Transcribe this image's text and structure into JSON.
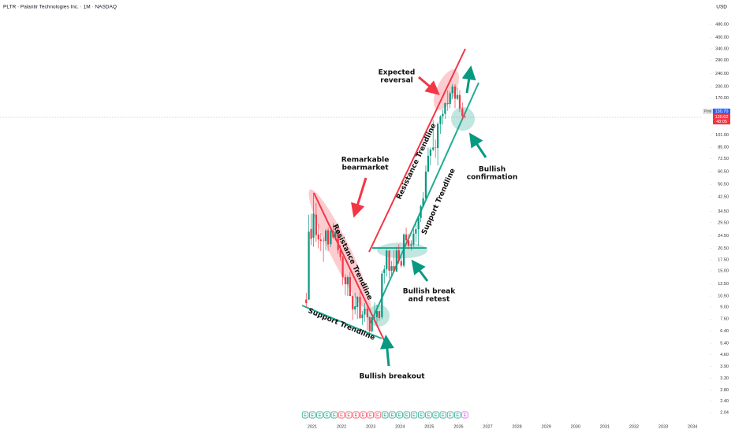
{
  "chart_data": {
    "type": "candlestick",
    "title": "PLTR · Palantir Technologies Inc. · 1M · NASDAQ",
    "currency": "USD",
    "log_scale": true,
    "up_color": "#089981",
    "down_color": "#f23645",
    "xlim": [
      2010.32,
      2034.59
    ],
    "xticks": [
      2021,
      2022,
      2023,
      2024,
      2025,
      2026,
      2027,
      2028,
      2029,
      2030,
      2031,
      2032,
      2033,
      2034
    ],
    "ylim": [
      2.04,
      480
    ],
    "yticks": [
      {
        "value": 480,
        "label": "480.00"
      },
      {
        "value": 400,
        "label": "400.00"
      },
      {
        "value": 340,
        "label": "340.00"
      },
      {
        "value": 290,
        "label": "290.00"
      },
      {
        "value": 240,
        "label": "240.00"
      },
      {
        "value": 200,
        "label": "200.00"
      },
      {
        "value": 170,
        "label": "170.00"
      },
      {
        "value": 101,
        "label": "101.00"
      },
      {
        "value": 85,
        "label": "85.00"
      },
      {
        "value": 72.5,
        "label": "72.50"
      },
      {
        "value": 60.5,
        "label": "60.50"
      },
      {
        "value": 50.5,
        "label": "50.50"
      },
      {
        "value": 42.5,
        "label": "42.50"
      },
      {
        "value": 34.5,
        "label": "34.50"
      },
      {
        "value": 29.5,
        "label": "29.50"
      },
      {
        "value": 24.5,
        "label": "24.50"
      },
      {
        "value": 20.5,
        "label": "20.50"
      },
      {
        "value": 17.5,
        "label": "17.50"
      },
      {
        "value": 15,
        "label": "15.00"
      },
      {
        "value": 12.5,
        "label": "12.50"
      },
      {
        "value": 10.5,
        "label": "10.50"
      },
      {
        "value": 9,
        "label": "9.00"
      },
      {
        "value": 7.6,
        "label": "7.60"
      },
      {
        "value": 6.4,
        "label": "6.40"
      },
      {
        "value": 5.4,
        "label": "5.40"
      },
      {
        "value": 4.6,
        "label": "4.60"
      },
      {
        "value": 3.9,
        "label": "3.90"
      },
      {
        "value": 3.3,
        "label": "3.30"
      },
      {
        "value": 2.8,
        "label": "2.80"
      },
      {
        "value": 2.4,
        "label": "2.40"
      },
      {
        "value": 2.04,
        "label": "2.04"
      }
    ],
    "x": [
      2020.79,
      2020.88,
      2020.96,
      2021.04,
      2021.13,
      2021.21,
      2021.29,
      2021.38,
      2021.46,
      2021.54,
      2021.63,
      2021.71,
      2021.79,
      2021.88,
      2021.96,
      2022.04,
      2022.13,
      2022.21,
      2022.29,
      2022.38,
      2022.46,
      2022.54,
      2022.63,
      2022.71,
      2022.79,
      2022.88,
      2022.96,
      2023.04,
      2023.13,
      2023.21,
      2023.29,
      2023.38,
      2023.46,
      2023.54,
      2023.63,
      2023.71,
      2023.79,
      2023.88,
      2023.96,
      2024.04,
      2024.13,
      2024.21,
      2024.29,
      2024.38,
      2024.46,
      2024.54,
      2024.63,
      2024.71,
      2024.79,
      2024.88,
      2024.96,
      2025.04,
      2025.13,
      2025.21,
      2025.29,
      2025.38,
      2025.46,
      2025.54,
      2025.63,
      2025.71,
      2025.79,
      2025.88,
      2025.96,
      2026.04,
      2026.13,
      2026.21
    ],
    "open": [
      10,
      10,
      27,
      23.9,
      33,
      25,
      23.3,
      22.9,
      22.8,
      26.5,
      21.8,
      26.3,
      24,
      26,
      20,
      18.2,
      13.7,
      12.4,
      13.7,
      10.5,
      8.7,
      9,
      10.4,
      7.7,
      8.1,
      8.8,
      7.8,
      6.4,
      7.8,
      7.8,
      8.5,
      7.8,
      14.5,
      15.3,
      19.9,
      15,
      16,
      14.8,
      20,
      17.2,
      16.1,
      25,
      23,
      21.3,
      21.7,
      25.3,
      26.9,
      31.5,
      37.2,
      41.5,
      60.5,
      75.6,
      82.5,
      84.8,
      84.4,
      118.4,
      131.8,
      136.3,
      158.4,
      156.7,
      182.4,
      200.5,
      168.5,
      177.8,
      147,
      132
    ],
    "high": [
      11,
      33,
      33.5,
      45,
      39,
      29,
      25.5,
      24,
      27,
      27.5,
      27,
      29.3,
      27,
      29,
      21.5,
      18.5,
      14.3,
      14,
      14.8,
      10.7,
      11,
      10.5,
      11.2,
      8.5,
      9.5,
      9.2,
      7.9,
      7.8,
      9.6,
      9.3,
      8.5,
      15,
      16.2,
      20.3,
      20,
      17.2,
      20,
      21,
      21.8,
      18.2,
      25.4,
      27.5,
      25.2,
      23,
      27.2,
      30.5,
      32.5,
      38,
      45.3,
      66,
      84.8,
      85,
      125,
      95,
      121,
      133.5,
      144.9,
      160.8,
      190,
      187.8,
      207.5,
      207,
      197,
      190,
      160,
      140
    ],
    "low": [
      8.9,
      9.9,
      21.5,
      21,
      22.5,
      20.5,
      19.8,
      17,
      20,
      19.8,
      20.9,
      23.5,
      23,
      19,
      17.3,
      12.3,
      10.6,
      10.5,
      10.5,
      7.5,
      8.1,
      7.6,
      7.6,
      7,
      7.3,
      6.5,
      6,
      6.3,
      7.5,
      7.2,
      7.4,
      7.6,
      12.5,
      13.8,
      13.5,
      14,
      14.8,
      14.8,
      16.5,
      15.7,
      15.7,
      21.5,
      20.3,
      20,
      21,
      22.4,
      21.2,
      29.7,
      36.5,
      40.6,
      60,
      66,
      80.6,
      73.5,
      66.1,
      103,
      117,
      127.1,
      142.3,
      147.6,
      167.9,
      147.6,
      165,
      140,
      125,
      128
    ],
    "close": [
      9.5,
      26,
      23.5,
      33.5,
      24.8,
      23.3,
      22.8,
      22.8,
      26.4,
      21.7,
      26.3,
      24,
      25.9,
      20,
      18.2,
      13.7,
      12.4,
      13.7,
      10.5,
      8.7,
      9.1,
      10.4,
      7.7,
      8.1,
      8.8,
      7.8,
      6.4,
      7.8,
      7.8,
      8.5,
      7.7,
      14.4,
      15.3,
      19.9,
      15,
      16,
      14.8,
      20,
      17.2,
      16.1,
      25,
      23,
      21.3,
      21.7,
      25.3,
      26.9,
      31.5,
      37.2,
      41.5,
      60.5,
      75.6,
      82.5,
      84.8,
      84.4,
      118.4,
      131.8,
      136.3,
      158.4,
      156.7,
      182.4,
      200.5,
      168.5,
      177.8,
      147,
      132,
      130.7
    ],
    "post_tag": "Post",
    "post_price": {
      "value": 130.7,
      "label": "130.70"
    },
    "last_price": {
      "value": 130.62,
      "label": "130.62"
    },
    "countdown": "48:05",
    "earnings_markers": [
      "E",
      "E",
      "E",
      "E",
      "E",
      "E",
      "E",
      "E",
      "E",
      "E",
      "E",
      "E",
      "E",
      "E",
      "E",
      "E",
      "E",
      "E",
      "E",
      "E",
      "E",
      "E",
      "E"
    ],
    "annotations": [
      {
        "lines": [
          "Expected",
          "reversal"
        ]
      },
      {
        "lines": [
          "Remarkable",
          "bearmarket"
        ]
      },
      {
        "lines": [
          "Bullish",
          "confirmation"
        ]
      },
      {
        "lines": [
          "Bullish break",
          "and retest"
        ]
      },
      {
        "lines": [
          "Bullish breakout"
        ]
      },
      {
        "lines": [
          "Resistance Trendline"
        ]
      },
      {
        "lines": [
          "Resistance Trendline"
        ]
      },
      {
        "lines": [
          "Support Trendline"
        ]
      },
      {
        "lines": [
          "Support Trendline"
        ]
      }
    ]
  }
}
